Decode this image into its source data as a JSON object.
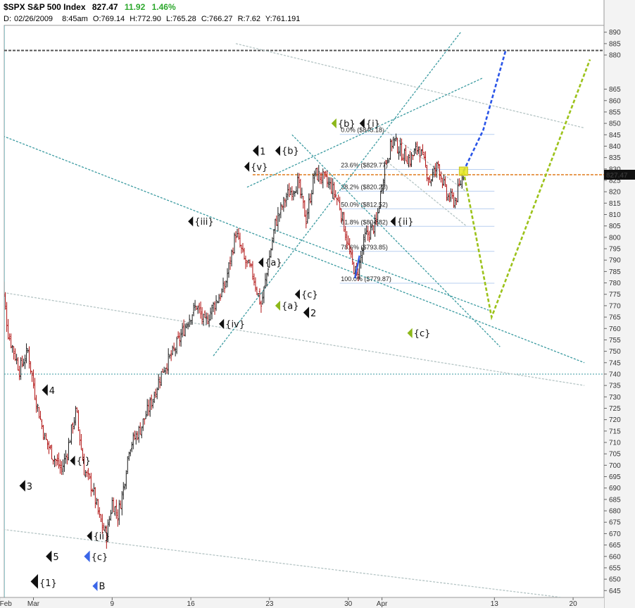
{
  "header": {
    "symbol": "$SPX S&P 500 Index",
    "last": "827.47",
    "change": "11.92",
    "change_pct": "1.46%",
    "d_label": "D:",
    "date": "02/26/2009",
    "time": "8:45am",
    "ohlc": [
      {
        "k": "O:",
        "v": "769.14"
      },
      {
        "k": "H:",
        "v": "772.90"
      },
      {
        "k": "L:",
        "v": "765.28"
      },
      {
        "k": "C:",
        "v": "766.27"
      },
      {
        "k": "R:",
        "v": "7.62"
      },
      {
        "k": "Y:",
        "v": "761.191"
      }
    ]
  },
  "colors": {
    "up": "#1a1a1a",
    "down": "#b01010",
    "trend": "#3a9aa0",
    "channel_gray": "#b4c4c4",
    "fib_line": "#b8cff0",
    "orange": "#e07a1a",
    "blue_proj": "#2a55e8",
    "green_proj": "#9cc21a",
    "green_label": "#8db81a",
    "blue_label": "#3a66e8",
    "price_box": "#111111",
    "highlight": "#e8e820"
  },
  "chart_data": {
    "type": "candlestick",
    "ylim": [
      642,
      893
    ],
    "y_ticks": [
      645,
      650,
      655,
      660,
      665,
      670,
      675,
      680,
      685,
      690,
      695,
      700,
      705,
      710,
      715,
      720,
      725,
      730,
      735,
      740,
      745,
      750,
      755,
      760,
      765,
      770,
      775,
      780,
      785,
      790,
      795,
      800,
      805,
      810,
      815,
      820,
      825,
      830,
      835,
      840,
      845,
      850,
      855,
      860,
      865,
      880,
      885,
      890
    ],
    "x_labels": [
      {
        "day": 0,
        "text": "Feb"
      },
      {
        "day": 6,
        "text": "Mar"
      },
      {
        "day": 20,
        "text": "9"
      },
      {
        "day": 34,
        "text": "16"
      },
      {
        "day": 48,
        "text": "23"
      },
      {
        "day": 62,
        "text": "30"
      },
      {
        "day": 68,
        "text": "Apr"
      },
      {
        "day": 88,
        "text": "13"
      },
      {
        "day": 102,
        "text": "20"
      }
    ],
    "x_day_range": [
      0.8,
      107.5
    ],
    "current_price": "827.47",
    "anchors": [
      {
        "day": 0.0,
        "p": 790
      },
      {
        "day": 1.5,
        "p": 758
      },
      {
        "day": 3.5,
        "p": 742
      },
      {
        "day": 5.0,
        "p": 750
      },
      {
        "day": 6.5,
        "p": 728
      },
      {
        "day": 8.0,
        "p": 712
      },
      {
        "day": 9.5,
        "p": 704
      },
      {
        "day": 11.0,
        "p": 698
      },
      {
        "day": 12.0,
        "p": 706
      },
      {
        "day": 13.0,
        "p": 718
      },
      {
        "day": 13.6,
        "p": 724
      },
      {
        "day": 15.0,
        "p": 698
      },
      {
        "day": 16.5,
        "p": 690
      },
      {
        "day": 17.8,
        "p": 676
      },
      {
        "day": 19.0,
        "p": 669
      },
      {
        "day": 20.0,
        "p": 684
      },
      {
        "day": 21.0,
        "p": 678
      },
      {
        "day": 22.0,
        "p": 690
      },
      {
        "day": 23.0,
        "p": 708
      },
      {
        "day": 25.0,
        "p": 716
      },
      {
        "day": 27.0,
        "p": 728
      },
      {
        "day": 29.0,
        "p": 742
      },
      {
        "day": 31.0,
        "p": 750
      },
      {
        "day": 33.5,
        "p": 764
      },
      {
        "day": 35.0,
        "p": 770
      },
      {
        "day": 36.5,
        "p": 762
      },
      {
        "day": 38.0,
        "p": 770
      },
      {
        "day": 40.0,
        "p": 778
      },
      {
        "day": 42.0,
        "p": 802
      },
      {
        "day": 43.5,
        "p": 790
      },
      {
        "day": 45.0,
        "p": 784
      },
      {
        "day": 46.5,
        "p": 770
      },
      {
        "day": 47.5,
        "p": 784
      },
      {
        "day": 49.0,
        "p": 806
      },
      {
        "day": 51.0,
        "p": 818
      },
      {
        "day": 53.0,
        "p": 824
      },
      {
        "day": 54.5,
        "p": 808
      },
      {
        "day": 56.0,
        "p": 828
      },
      {
        "day": 57.5,
        "p": 826
      },
      {
        "day": 59.0,
        "p": 822
      },
      {
        "day": 60.5,
        "p": 814
      },
      {
        "day": 62.5,
        "p": 790
      },
      {
        "day": 63.5,
        "p": 783
      },
      {
        "day": 65.0,
        "p": 800
      },
      {
        "day": 67.0,
        "p": 806
      },
      {
        "day": 68.5,
        "p": 832
      },
      {
        "day": 70.0,
        "p": 843
      },
      {
        "day": 71.5,
        "p": 837
      },
      {
        "day": 73.0,
        "p": 834
      },
      {
        "day": 74.5,
        "p": 840
      },
      {
        "day": 76.5,
        "p": 825
      },
      {
        "day": 78.0,
        "p": 832
      },
      {
        "day": 79.5,
        "p": 818
      },
      {
        "day": 81.0,
        "p": 816
      },
      {
        "day": 82.5,
        "p": 828
      }
    ],
    "fib_levels": [
      {
        "text": "0.0%   ($845.18)",
        "p": 845.18
      },
      {
        "text": "23.6%   ($829.77)",
        "p": 829.77
      },
      {
        "text": "38.2%   ($820.23)",
        "p": 820.23
      },
      {
        "text": "50.0%   ($812.52)",
        "p": 812.52
      },
      {
        "text": "61.8%   ($804.82)",
        "p": 804.82
      },
      {
        "text": "78.6%   ($793.85)",
        "p": 793.85
      },
      {
        "text": "100.0%   ($779.87)",
        "p": 779.87
      }
    ],
    "horizontal_lines": [
      {
        "p": 882,
        "style": "dark-dashed"
      },
      {
        "p": 827.47,
        "style": "orange-dashed"
      },
      {
        "p": 740,
        "style": "teal-dotted"
      }
    ],
    "trendlines": [
      {
        "a": [
          0,
          845
        ],
        "b": [
          104,
          745
        ],
        "color": "trend"
      },
      {
        "a": [
          0,
          776
        ],
        "b": [
          104,
          735
        ],
        "color": "channel_gray"
      },
      {
        "a": [
          0,
          672
        ],
        "b": [
          100,
          642
        ],
        "color": "channel_gray"
      },
      {
        "a": [
          42,
          885
        ],
        "b": [
          104,
          848
        ],
        "color": "channel_gray"
      },
      {
        "a": [
          44,
          822
        ],
        "b": [
          86,
          870
        ],
        "color": "trend"
      },
      {
        "a": [
          38,
          748
        ],
        "b": [
          82,
          890
        ],
        "color": "trend"
      },
      {
        "a": [
          52,
          845
        ],
        "b": [
          89,
          752
        ],
        "color": "trend"
      },
      {
        "a": [
          67,
          850
        ],
        "b": [
          83,
          820
        ],
        "color": "channel_gray"
      },
      {
        "a": [
          68,
          835
        ],
        "b": [
          83,
          805
        ],
        "color": "channel_gray"
      },
      {
        "a": [
          48,
          804
        ],
        "b": [
          87,
          768
        ],
        "color": "trend"
      }
    ],
    "projections": [
      {
        "points": [
          [
            82.5,
            829
          ],
          [
            86,
            847
          ],
          [
            90,
            882
          ]
        ],
        "color": "blue_proj"
      },
      {
        "points": [
          [
            82.5,
            829
          ],
          [
            87.5,
            765
          ],
          [
            105,
            878
          ]
        ],
        "color": "green_proj"
      }
    ],
    "labels": [
      {
        "text": "{1}",
        "day": 5.5,
        "p": 649,
        "color": "#111111",
        "size": 19
      },
      {
        "text": "5",
        "day": 8.2,
        "p": 660,
        "color": "#111111",
        "size": 15
      },
      {
        "text": "3",
        "day": 3.5,
        "p": 691,
        "color": "#111111",
        "size": 15
      },
      {
        "text": "4",
        "day": 7.5,
        "p": 733,
        "color": "#111111",
        "size": 15
      },
      {
        "text": "{i}",
        "day": 12.5,
        "p": 702,
        "color": "#111111",
        "size": 13
      },
      {
        "text": "{ii}",
        "day": 15.5,
        "p": 669,
        "color": "#111111",
        "size": 13
      },
      {
        "text": "{c}",
        "day": 15,
        "p": 660,
        "color": "blue_label",
        "size": 15
      },
      {
        "text": "B",
        "day": 16.5,
        "p": 647,
        "color": "blue_label",
        "size": 13
      },
      {
        "text": "{iii}",
        "day": 33.5,
        "p": 807,
        "color": "#111111",
        "size": 13
      },
      {
        "text": "{iv}",
        "day": 39,
        "p": 762,
        "color": "#111111",
        "size": 13
      },
      {
        "text": "1",
        "day": 45,
        "p": 838,
        "color": "#111111",
        "size": 15
      },
      {
        "text": "{v}",
        "day": 43.5,
        "p": 831,
        "color": "#111111",
        "size": 13
      },
      {
        "text": "{b}",
        "day": 49,
        "p": 838,
        "color": "#111111",
        "size": 13
      },
      {
        "text": "{a}",
        "day": 46,
        "p": 789,
        "color": "#111111",
        "size": 13
      },
      {
        "text": "{c}",
        "day": 52.5,
        "p": 775,
        "color": "#111111",
        "size": 13
      },
      {
        "text": "{a}",
        "day": 49,
        "p": 770,
        "color": "green_label",
        "size": 13
      },
      {
        "text": "2",
        "day": 54,
        "p": 767,
        "color": "#111111",
        "size": 15
      },
      {
        "text": "{b}",
        "day": 59,
        "p": 850,
        "color": "green_label",
        "size": 13
      },
      {
        "text": "{i}",
        "day": 64,
        "p": 850,
        "color": "#111111",
        "size": 13
      },
      {
        "text": "{ii}",
        "day": 69.5,
        "p": 807,
        "color": "#111111",
        "size": 13
      },
      {
        "text": "{c}",
        "day": 72.5,
        "p": 758,
        "color": "green_label",
        "size": 13
      }
    ]
  }
}
